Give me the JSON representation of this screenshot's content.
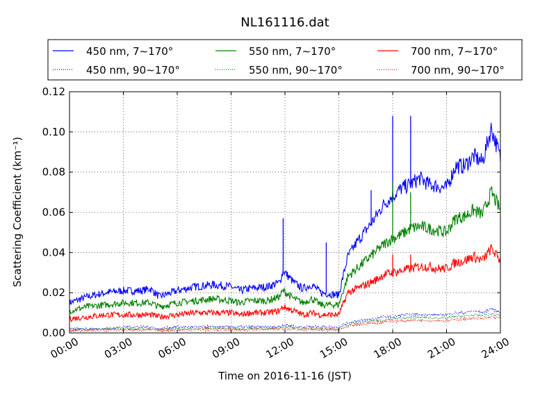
{
  "chart_data": {
    "type": "line",
    "title": "NL161116.dat",
    "xlabel": "Time on 2016-11-16 (JST)",
    "ylabel": "Scattering Coefficient (km⁻¹)",
    "xlim": [
      "2016-11-16 00:00",
      "2016-11-17 00:00"
    ],
    "ylim": [
      0,
      0.12
    ],
    "grid": true,
    "legend_position": "top",
    "x_ticks": [
      "00:00",
      "03:00",
      "06:00",
      "09:00",
      "12:00",
      "15:00",
      "18:00",
      "21:00",
      "24:00"
    ],
    "y_ticks": [
      "0.00",
      "0.02",
      "0.04",
      "0.06",
      "0.08",
      "0.10",
      "0.12"
    ],
    "y_tick_values": [
      0,
      0.02,
      0.04,
      0.06,
      0.08,
      0.1,
      0.12
    ],
    "x_ticks_hours": [
      0,
      3,
      6,
      9,
      12,
      15,
      18,
      21,
      24
    ],
    "x_hours": [
      0,
      1,
      2,
      3,
      4,
      4.5,
      5,
      6,
      7,
      8,
      9,
      9.5,
      10,
      11,
      11.7,
      11.9,
      12.2,
      12.5,
      13,
      13.5,
      14,
      14.8,
      15,
      15.5,
      16,
      17,
      17.5,
      18,
      18.5,
      19,
      19.5,
      20,
      20.5,
      21,
      21.5,
      22,
      22.5,
      23,
      23.5,
      24
    ],
    "series": [
      {
        "name": "450 nm, 7∼170°",
        "color": "#0000ff",
        "style": "solid",
        "values": [
          0.015,
          0.018,
          0.02,
          0.021,
          0.021,
          0.022,
          0.018,
          0.021,
          0.023,
          0.024,
          0.023,
          0.021,
          0.022,
          0.023,
          0.025,
          0.031,
          0.028,
          0.025,
          0.022,
          0.024,
          0.02,
          0.019,
          0.019,
          0.038,
          0.045,
          0.057,
          0.064,
          0.068,
          0.072,
          0.074,
          0.077,
          0.074,
          0.073,
          0.072,
          0.083,
          0.083,
          0.088,
          0.085,
          0.102,
          0.087
        ]
      },
      {
        "name": "550 nm, 7∼170°",
        "color": "#008000",
        "style": "solid",
        "values": [
          0.011,
          0.013,
          0.014,
          0.015,
          0.015,
          0.015,
          0.013,
          0.015,
          0.016,
          0.017,
          0.016,
          0.015,
          0.016,
          0.016,
          0.018,
          0.021,
          0.019,
          0.017,
          0.015,
          0.017,
          0.014,
          0.014,
          0.014,
          0.028,
          0.032,
          0.04,
          0.044,
          0.047,
          0.049,
          0.052,
          0.053,
          0.052,
          0.051,
          0.05,
          0.057,
          0.058,
          0.061,
          0.059,
          0.07,
          0.061
        ]
      },
      {
        "name": "700 nm, 7∼170°",
        "color": "#ff0000",
        "style": "solid",
        "values": [
          0.007,
          0.008,
          0.009,
          0.009,
          0.009,
          0.009,
          0.008,
          0.009,
          0.01,
          0.01,
          0.01,
          0.009,
          0.01,
          0.01,
          0.011,
          0.013,
          0.012,
          0.011,
          0.009,
          0.01,
          0.009,
          0.009,
          0.009,
          0.02,
          0.022,
          0.026,
          0.029,
          0.03,
          0.031,
          0.032,
          0.033,
          0.033,
          0.032,
          0.032,
          0.035,
          0.036,
          0.038,
          0.036,
          0.042,
          0.036
        ]
      },
      {
        "name": "450 nm, 90∼170°",
        "color": "#0000ff",
        "style": "dotted",
        "values": [
          0.002,
          0.002,
          0.002,
          0.003,
          0.003,
          0.003,
          0.002,
          0.003,
          0.003,
          0.003,
          0.003,
          0.003,
          0.003,
          0.003,
          0.003,
          0.004,
          0.004,
          0.003,
          0.003,
          0.003,
          0.003,
          0.003,
          0.003,
          0.005,
          0.006,
          0.007,
          0.008,
          0.008,
          0.009,
          0.009,
          0.009,
          0.009,
          0.009,
          0.009,
          0.01,
          0.01,
          0.011,
          0.01,
          0.012,
          0.01
        ]
      },
      {
        "name": "550 nm, 90∼170°",
        "color": "#008000",
        "style": "dotted",
        "values": [
          0.0015,
          0.0018,
          0.002,
          0.002,
          0.002,
          0.002,
          0.0018,
          0.002,
          0.0022,
          0.0024,
          0.0022,
          0.002,
          0.0022,
          0.0022,
          0.0025,
          0.003,
          0.0028,
          0.0024,
          0.0022,
          0.0024,
          0.002,
          0.002,
          0.002,
          0.004,
          0.005,
          0.006,
          0.0065,
          0.007,
          0.0072,
          0.0075,
          0.0077,
          0.0075,
          0.0074,
          0.0072,
          0.0082,
          0.0083,
          0.0088,
          0.0085,
          0.0095,
          0.0085
        ]
      },
      {
        "name": "700 nm, 90∼170°",
        "color": "#ff0000",
        "style": "dotted",
        "values": [
          0.001,
          0.0012,
          0.0014,
          0.0015,
          0.0015,
          0.0015,
          0.0012,
          0.0015,
          0.0016,
          0.0017,
          0.0016,
          0.0015,
          0.0016,
          0.0016,
          0.0018,
          0.0022,
          0.002,
          0.0018,
          0.0016,
          0.0017,
          0.0015,
          0.0015,
          0.0015,
          0.003,
          0.004,
          0.005,
          0.0055,
          0.006,
          0.006,
          0.0062,
          0.0064,
          0.0063,
          0.0062,
          0.006,
          0.0068,
          0.0069,
          0.0073,
          0.007,
          0.008,
          0.0072
        ]
      }
    ],
    "spikes": [
      {
        "x_hour": 11.9,
        "series": "450 nm, 7∼170°",
        "value": 0.057
      },
      {
        "x_hour": 14.3,
        "series": "450 nm, 7∼170°",
        "value": 0.045
      },
      {
        "x_hour": 16.8,
        "series": "450 nm, 7∼170°",
        "value": 0.071
      },
      {
        "x_hour": 18.0,
        "series": "450 nm, 7∼170°",
        "value": 0.108
      },
      {
        "x_hour": 19.0,
        "series": "450 nm, 7∼170°",
        "value": 0.108
      },
      {
        "x_hour": 18.0,
        "series": "550 nm, 7∼170°",
        "value": 0.075
      },
      {
        "x_hour": 19.0,
        "series": "550 nm, 7∼170°",
        "value": 0.07
      },
      {
        "x_hour": 18.0,
        "series": "700 nm, 7∼170°",
        "value": 0.039
      },
      {
        "x_hour": 19.0,
        "series": "700 nm, 7∼170°",
        "value": 0.039
      }
    ]
  }
}
